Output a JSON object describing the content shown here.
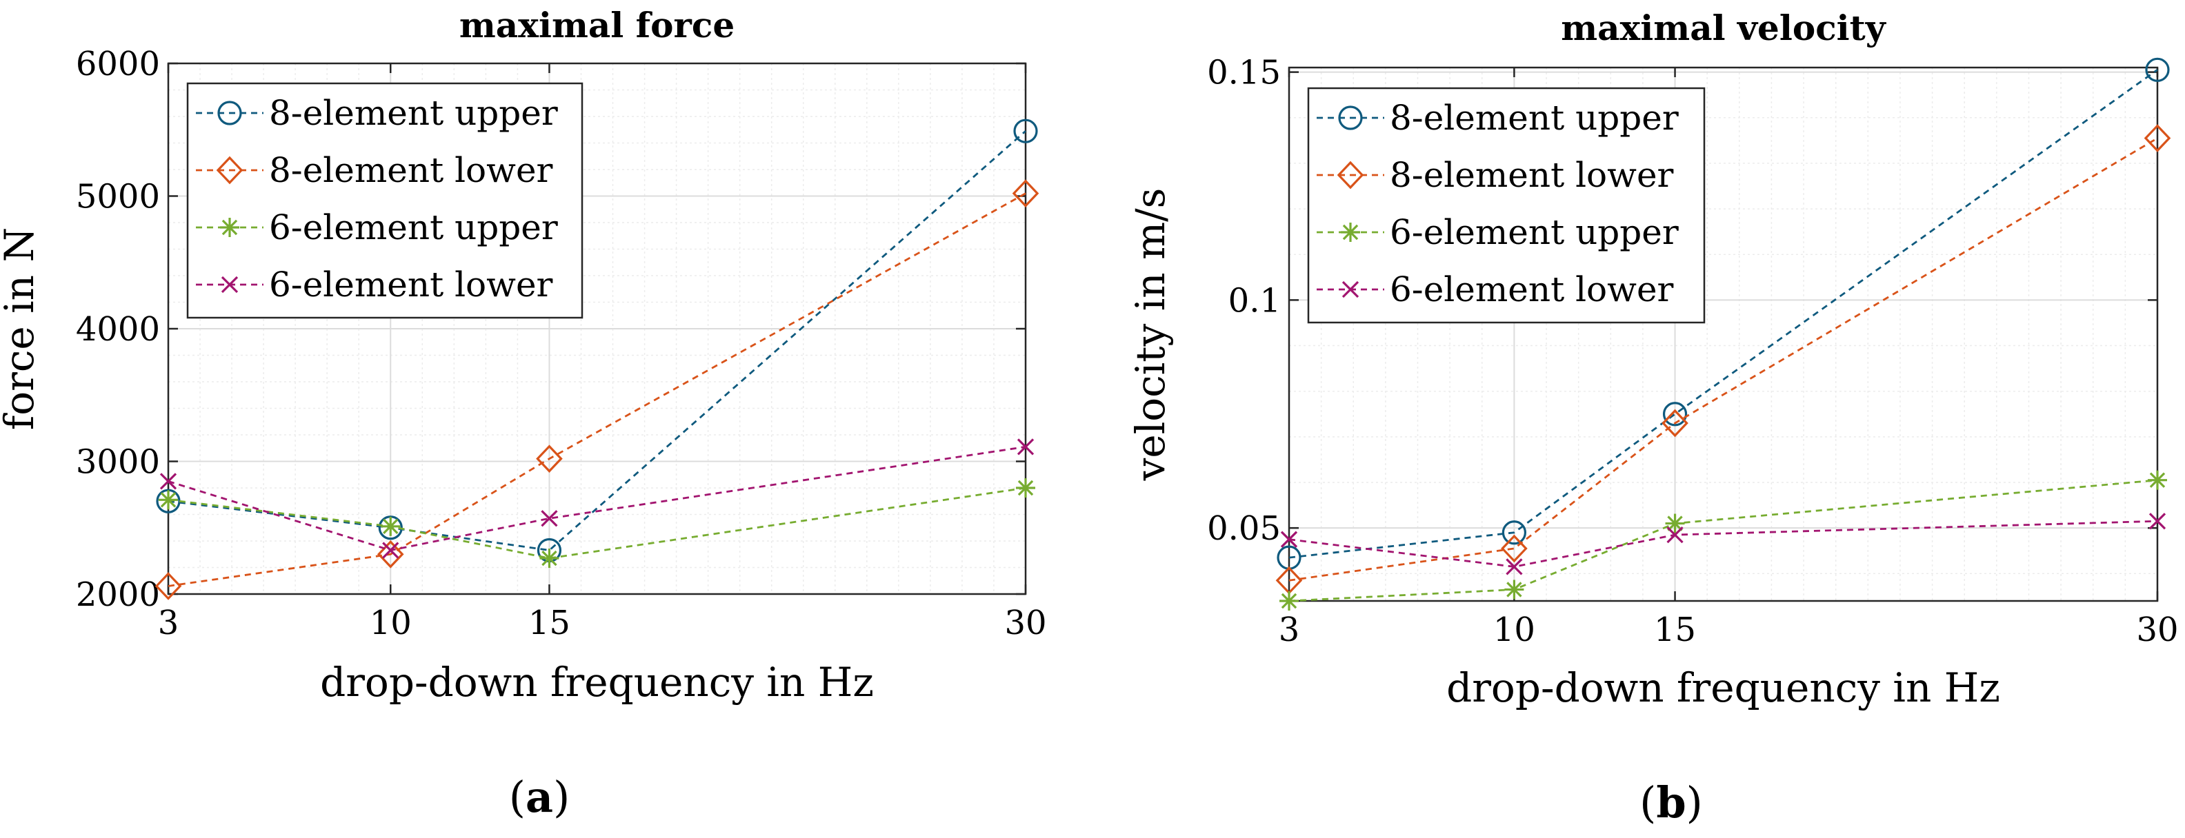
{
  "chart_data": [
    {
      "type": "line",
      "title": "maximal force",
      "xlabel": "drop-down frequency in Hz",
      "ylabel": "force in N",
      "panel": "a",
      "x": [
        3,
        10,
        15,
        30
      ],
      "xticks": [
        "3",
        "10",
        "15",
        "30"
      ],
      "xlim": [
        3,
        30
      ],
      "ylim": [
        2000,
        6000
      ],
      "yticks": [
        "2000",
        "3000",
        "4000",
        "5000",
        "6000"
      ],
      "ytick_values": [
        2000,
        3000,
        4000,
        5000,
        6000
      ],
      "grid": true,
      "legend_position": "top-left",
      "series": [
        {
          "name": "8-element upper",
          "marker": "circle",
          "color": "#0f5a7e",
          "values": [
            2700,
            2500,
            2330,
            5490
          ]
        },
        {
          "name": "8-element lower",
          "marker": "diamond",
          "color": "#d95319",
          "values": [
            2060,
            2300,
            3020,
            5020
          ]
        },
        {
          "name": "6-element upper",
          "marker": "asterisk",
          "color": "#77ac30",
          "values": [
            2710,
            2510,
            2270,
            2800
          ]
        },
        {
          "name": "6-element lower",
          "marker": "cross",
          "color": "#a2146f",
          "values": [
            2850,
            2330,
            2570,
            3110
          ]
        }
      ]
    },
    {
      "type": "line",
      "title": "maximal velocity",
      "xlabel": "drop-down frequency in Hz",
      "ylabel": "velocity in m/s",
      "panel": "b",
      "x": [
        3,
        10,
        15,
        30
      ],
      "xticks": [
        "3",
        "10",
        "15",
        "30"
      ],
      "xlim": [
        3,
        30
      ],
      "ylim": [
        0.034,
        0.151
      ],
      "yticks": [
        "0.05",
        "0.1",
        "0.15"
      ],
      "ytick_values": [
        0.05,
        0.1,
        0.15
      ],
      "grid": true,
      "legend_position": "top-left",
      "series": [
        {
          "name": "8-element upper",
          "marker": "circle",
          "color": "#0f5a7e",
          "values": [
            0.0435,
            0.049,
            0.075,
            0.1505
          ]
        },
        {
          "name": "8-element lower",
          "marker": "diamond",
          "color": "#d95319",
          "values": [
            0.0385,
            0.0455,
            0.073,
            0.1355
          ]
        },
        {
          "name": "6-element upper",
          "marker": "asterisk",
          "color": "#77ac30",
          "values": [
            0.034,
            0.0365,
            0.051,
            0.0605
          ]
        },
        {
          "name": "6-element lower",
          "marker": "cross",
          "color": "#a2146f",
          "values": [
            0.0475,
            0.0415,
            0.0485,
            0.0515
          ]
        }
      ]
    }
  ]
}
